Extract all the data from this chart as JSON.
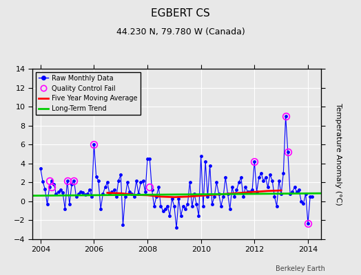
{
  "title": "EGBERT CS",
  "subtitle": "44.230 N, 79.780 W (Canada)",
  "ylabel": "Temperature Anomaly (°C)",
  "watermark": "Berkeley Earth",
  "ylim": [
    -4,
    14
  ],
  "yticks": [
    -4,
    -2,
    0,
    2,
    4,
    6,
    8,
    10,
    12,
    14
  ],
  "xlim": [
    2003.7,
    2014.5
  ],
  "xticks": [
    2004,
    2006,
    2008,
    2010,
    2012,
    2014
  ],
  "bg_color": "#e8e8e8",
  "plot_bg_color": "#e8e8e8",
  "raw_data": [
    [
      2004.0,
      3.5
    ],
    [
      2004.083,
      2.1
    ],
    [
      2004.167,
      1.3
    ],
    [
      2004.25,
      -0.3
    ],
    [
      2004.333,
      1.5
    ],
    [
      2004.417,
      2.2
    ],
    [
      2004.5,
      1.8
    ],
    [
      2004.583,
      0.8
    ],
    [
      2004.667,
      1.0
    ],
    [
      2004.75,
      1.2
    ],
    [
      2004.833,
      0.9
    ],
    [
      2004.917,
      -0.8
    ],
    [
      2005.0,
      2.2
    ],
    [
      2005.083,
      -0.3
    ],
    [
      2005.167,
      1.8
    ],
    [
      2005.25,
      2.2
    ],
    [
      2005.333,
      0.5
    ],
    [
      2005.417,
      0.8
    ],
    [
      2005.5,
      1.0
    ],
    [
      2005.583,
      0.9
    ],
    [
      2005.667,
      0.7
    ],
    [
      2005.75,
      0.8
    ],
    [
      2005.833,
      1.2
    ],
    [
      2005.917,
      0.5
    ],
    [
      2006.0,
      6.0
    ],
    [
      2006.083,
      2.6
    ],
    [
      2006.167,
      2.2
    ],
    [
      2006.25,
      -0.8
    ],
    [
      2006.333,
      0.8
    ],
    [
      2006.417,
      1.5
    ],
    [
      2006.5,
      2.0
    ],
    [
      2006.583,
      0.8
    ],
    [
      2006.667,
      1.0
    ],
    [
      2006.75,
      1.2
    ],
    [
      2006.833,
      0.5
    ],
    [
      2006.917,
      2.2
    ],
    [
      2007.0,
      2.8
    ],
    [
      2007.083,
      -2.5
    ],
    [
      2007.167,
      0.5
    ],
    [
      2007.25,
      2.0
    ],
    [
      2007.333,
      1.0
    ],
    [
      2007.417,
      0.8
    ],
    [
      2007.5,
      0.5
    ],
    [
      2007.583,
      2.2
    ],
    [
      2007.667,
      0.8
    ],
    [
      2007.75,
      2.0
    ],
    [
      2007.833,
      2.2
    ],
    [
      2007.917,
      1.0
    ],
    [
      2008.0,
      4.5
    ],
    [
      2008.083,
      4.5
    ],
    [
      2008.167,
      1.2
    ],
    [
      2008.25,
      -0.5
    ],
    [
      2008.333,
      0.5
    ],
    [
      2008.417,
      1.5
    ],
    [
      2008.5,
      -0.5
    ],
    [
      2008.583,
      -1.0
    ],
    [
      2008.667,
      -0.8
    ],
    [
      2008.75,
      -0.5
    ],
    [
      2008.833,
      -1.5
    ],
    [
      2008.917,
      0.3
    ],
    [
      2009.0,
      -0.5
    ],
    [
      2009.083,
      -2.8
    ],
    [
      2009.167,
      0.3
    ],
    [
      2009.25,
      -1.5
    ],
    [
      2009.333,
      -0.5
    ],
    [
      2009.417,
      -0.8
    ],
    [
      2009.5,
      -0.3
    ],
    [
      2009.583,
      2.0
    ],
    [
      2009.667,
      -0.5
    ],
    [
      2009.75,
      0.8
    ],
    [
      2009.833,
      -0.3
    ],
    [
      2009.917,
      -1.5
    ],
    [
      2010.0,
      4.8
    ],
    [
      2010.083,
      -0.5
    ],
    [
      2010.167,
      4.2
    ],
    [
      2010.25,
      0.5
    ],
    [
      2010.333,
      3.8
    ],
    [
      2010.417,
      -0.3
    ],
    [
      2010.5,
      0.5
    ],
    [
      2010.583,
      2.0
    ],
    [
      2010.667,
      0.8
    ],
    [
      2010.75,
      -0.5
    ],
    [
      2010.833,
      0.5
    ],
    [
      2010.917,
      2.5
    ],
    [
      2011.0,
      0.8
    ],
    [
      2011.083,
      -0.8
    ],
    [
      2011.167,
      1.5
    ],
    [
      2011.25,
      0.5
    ],
    [
      2011.333,
      1.2
    ],
    [
      2011.417,
      2.0
    ],
    [
      2011.5,
      2.5
    ],
    [
      2011.583,
      0.5
    ],
    [
      2011.667,
      1.5
    ],
    [
      2011.75,
      1.0
    ],
    [
      2011.833,
      1.0
    ],
    [
      2011.917,
      1.2
    ],
    [
      2012.0,
      4.2
    ],
    [
      2012.083,
      1.0
    ],
    [
      2012.167,
      2.5
    ],
    [
      2012.25,
      3.0
    ],
    [
      2012.333,
      2.2
    ],
    [
      2012.417,
      2.5
    ],
    [
      2012.5,
      1.5
    ],
    [
      2012.583,
      2.8
    ],
    [
      2012.667,
      2.2
    ],
    [
      2012.75,
      0.5
    ],
    [
      2012.833,
      -0.5
    ],
    [
      2012.917,
      2.2
    ],
    [
      2013.0,
      0.8
    ],
    [
      2013.083,
      3.0
    ],
    [
      2013.167,
      9.0
    ],
    [
      2013.25,
      5.2
    ],
    [
      2013.333,
      0.8
    ],
    [
      2013.417,
      1.0
    ],
    [
      2013.5,
      1.5
    ],
    [
      2013.583,
      1.0
    ],
    [
      2013.667,
      1.2
    ],
    [
      2013.75,
      0.0
    ],
    [
      2013.833,
      -0.2
    ],
    [
      2013.917,
      0.8
    ],
    [
      2014.0,
      -2.3
    ],
    [
      2014.083,
      0.5
    ],
    [
      2014.167,
      0.5
    ]
  ],
  "qc_fail_points": [
    [
      2004.333,
      2.2
    ],
    [
      2004.417,
      1.5
    ],
    [
      2005.0,
      2.2
    ],
    [
      2005.25,
      2.2
    ],
    [
      2006.0,
      6.0
    ],
    [
      2008.083,
      1.5
    ],
    [
      2012.0,
      4.2
    ],
    [
      2013.167,
      9.0
    ],
    [
      2013.25,
      5.2
    ],
    [
      2014.0,
      -2.3
    ]
  ],
  "moving_avg": [
    [
      2006.5,
      0.9
    ],
    [
      2007.0,
      0.85
    ],
    [
      2007.5,
      0.7
    ],
    [
      2008.0,
      0.65
    ],
    [
      2008.5,
      0.5
    ],
    [
      2009.0,
      0.45
    ],
    [
      2009.5,
      0.5
    ],
    [
      2010.0,
      0.6
    ],
    [
      2010.5,
      0.7
    ],
    [
      2011.0,
      0.8
    ],
    [
      2011.5,
      0.9
    ],
    [
      2012.0,
      1.0
    ],
    [
      2012.5,
      1.1
    ],
    [
      2013.0,
      1.15
    ]
  ],
  "trend_line": [
    [
      2003.7,
      0.6
    ],
    [
      2014.5,
      0.85
    ]
  ],
  "raw_color": "#0000ff",
  "qc_color": "#ff00ff",
  "mavg_color": "#ff0000",
  "trend_color": "#00cc00",
  "grid_color": "#ffffff"
}
